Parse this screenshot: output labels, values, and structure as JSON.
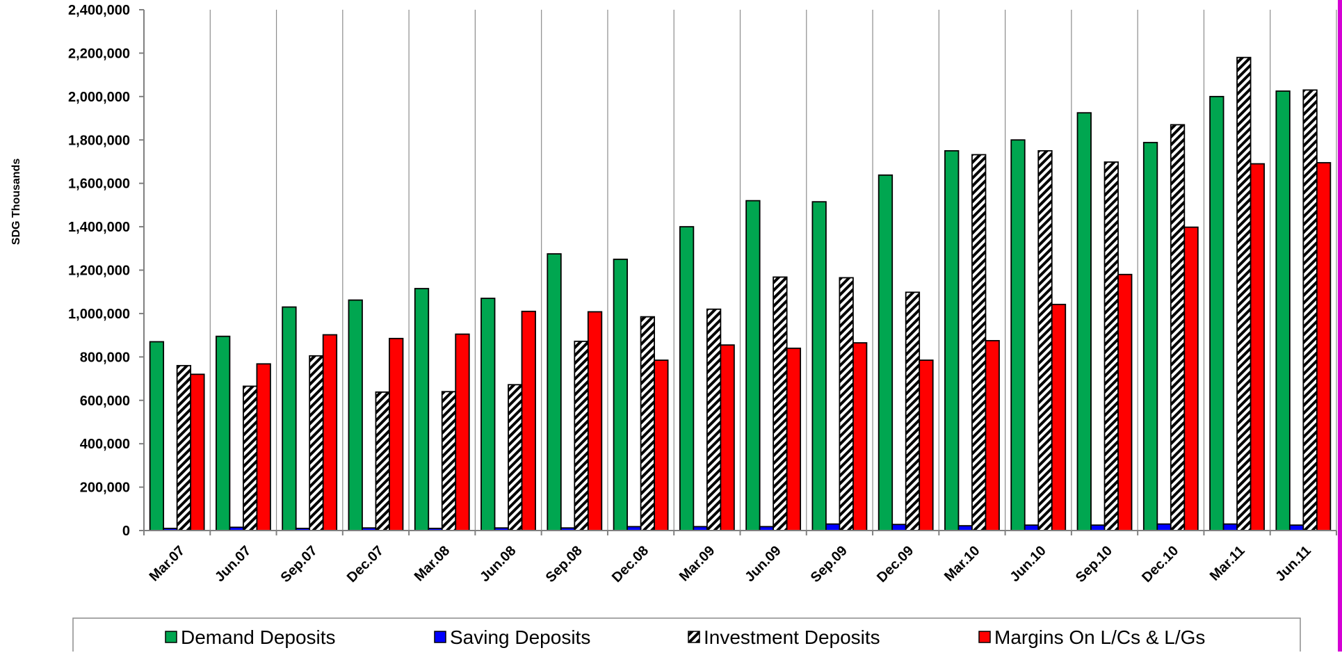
{
  "chart_data": {
    "type": "bar",
    "ylabel": "SDG Thousands",
    "ylim": [
      0,
      2400000
    ],
    "yticks": [
      0,
      200000,
      400000,
      600000,
      800000,
      1000000,
      1200000,
      1400000,
      1600000,
      1800000,
      2000000,
      2200000,
      2400000
    ],
    "ytick_labels": [
      "0",
      "200,000",
      "400,000",
      "600,000",
      "800,000",
      "1,000,000",
      "1,200,000",
      "1,400,000",
      "1,600,000",
      "1,800,000",
      "2,000,000",
      "2,200,000",
      "2,400,000"
    ],
    "grid": "vertical",
    "legend_position": "bottom",
    "categories": [
      "Mar.07",
      "Jun.07",
      "Sep.07",
      "Dec.07",
      "Mar.08",
      "Jun.08",
      "Sep.08",
      "Dec.08",
      "Mar.09",
      "Jun.09",
      "Sep.09",
      "Dec.09",
      "Mar.10",
      "Jun.10",
      "Sep.10",
      "Dec.10",
      "Mar.11",
      "Jun.11"
    ],
    "series": [
      {
        "name": "Demand Deposits",
        "color": "#00a650",
        "pattern": "solid",
        "values": [
          870000,
          895000,
          1030000,
          1062000,
          1115000,
          1070000,
          1275000,
          1250000,
          1400000,
          1520000,
          1515000,
          1638000,
          1750000,
          1800000,
          1925000,
          1788000,
          2000000,
          2025000
        ]
      },
      {
        "name": "Saving Deposits",
        "color": "#0000ff",
        "pattern": "solid",
        "values": [
          10000,
          15000,
          10000,
          12000,
          10000,
          12000,
          12000,
          18000,
          18000,
          18000,
          30000,
          28000,
          22000,
          25000,
          25000,
          30000,
          30000,
          25000
        ]
      },
      {
        "name": "Investment Deposits",
        "color": "#ffffff",
        "pattern": "hatch",
        "values": [
          760000,
          665000,
          805000,
          638000,
          640000,
          672000,
          872000,
          985000,
          1020000,
          1168000,
          1165000,
          1098000,
          1732000,
          1750000,
          1698000,
          1870000,
          2180000,
          2030000
        ]
      },
      {
        "name": "Margins On L/Cs & L/Gs",
        "color": "#ff0000",
        "pattern": "solid",
        "values": [
          720000,
          768000,
          902000,
          885000,
          905000,
          1010000,
          1008000,
          785000,
          855000,
          840000,
          865000,
          785000,
          875000,
          1042000,
          1180000,
          1398000,
          1690000,
          1695000
        ]
      }
    ]
  }
}
